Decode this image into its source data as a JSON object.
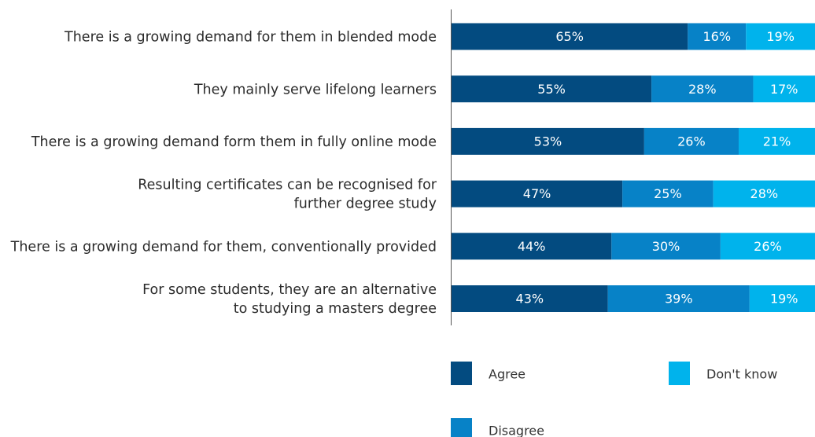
{
  "chart_data": {
    "type": "bar",
    "orientation": "horizontal",
    "stacked": true,
    "categories": [
      [
        "There is a growing demand for them in blended mode"
      ],
      [
        "They mainly serve lifelong learners"
      ],
      [
        "There is a growing demand form them in fully online mode"
      ],
      [
        "Resulting certificates can be recognised for",
        "further degree study"
      ],
      [
        "There is a growing demand for them, conventionally provided"
      ],
      [
        "For some students, they are an alternative",
        "to studying a masters degree"
      ]
    ],
    "series": [
      {
        "name": "Agree",
        "color": "#034b80",
        "values": [
          65,
          55,
          53,
          47,
          44,
          43
        ]
      },
      {
        "name": "Disagree",
        "color": "#0782c7",
        "values": [
          16,
          28,
          26,
          25,
          30,
          39
        ]
      },
      {
        "name": "Don't know",
        "color": "#00b3ec",
        "values": [
          19,
          17,
          21,
          28,
          26,
          19
        ]
      }
    ],
    "value_suffix": "%",
    "xlim": [
      0,
      100
    ],
    "title": "",
    "xlabel": "",
    "ylabel": "",
    "grid": false,
    "legend_position": "bottom"
  }
}
